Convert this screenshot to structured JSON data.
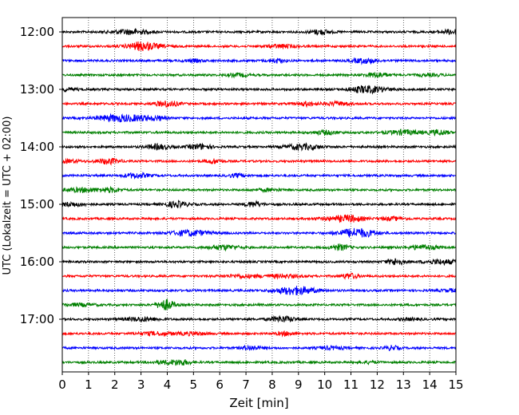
{
  "chart_data": {
    "type": "line",
    "xlabel": "Zeit  [min]",
    "ylabel": "UTC (Lokalzeit = UTC + 02:00)",
    "xlim": [
      0,
      15
    ],
    "x_ticks": [
      "0",
      "1",
      "2",
      "3",
      "4",
      "5",
      "6",
      "7",
      "8",
      "9",
      "10",
      "11",
      "12",
      "13",
      "14",
      "15"
    ],
    "y_tick_labels": [
      "12:00",
      "13:00",
      "14:00",
      "15:00",
      "16:00",
      "17:00"
    ],
    "grid": "vertical dotted",
    "trace_interval_min": 15,
    "series": [
      {
        "start": "12:00",
        "color": "#000000"
      },
      {
        "start": "12:15",
        "color": "#ff0000"
      },
      {
        "start": "12:30",
        "color": "#0000ff"
      },
      {
        "start": "12:45",
        "color": "#008000"
      },
      {
        "start": "13:00",
        "color": "#000000"
      },
      {
        "start": "13:15",
        "color": "#ff0000"
      },
      {
        "start": "13:30",
        "color": "#0000ff"
      },
      {
        "start": "13:45",
        "color": "#008000"
      },
      {
        "start": "14:00",
        "color": "#000000"
      },
      {
        "start": "14:15",
        "color": "#ff0000"
      },
      {
        "start": "14:30",
        "color": "#0000ff"
      },
      {
        "start": "14:45",
        "color": "#008000"
      },
      {
        "start": "15:00",
        "color": "#000000"
      },
      {
        "start": "15:15",
        "color": "#ff0000"
      },
      {
        "start": "15:30",
        "color": "#0000ff"
      },
      {
        "start": "15:45",
        "color": "#008000"
      },
      {
        "start": "16:00",
        "color": "#000000"
      },
      {
        "start": "16:15",
        "color": "#ff0000"
      },
      {
        "start": "16:30",
        "color": "#0000ff"
      },
      {
        "start": "16:45",
        "color": "#008000"
      },
      {
        "start": "17:00",
        "color": "#000000"
      },
      {
        "start": "17:15",
        "color": "#ff0000"
      },
      {
        "start": "17:30",
        "color": "#0000ff"
      },
      {
        "start": "17:45",
        "color": "#008000"
      }
    ]
  }
}
